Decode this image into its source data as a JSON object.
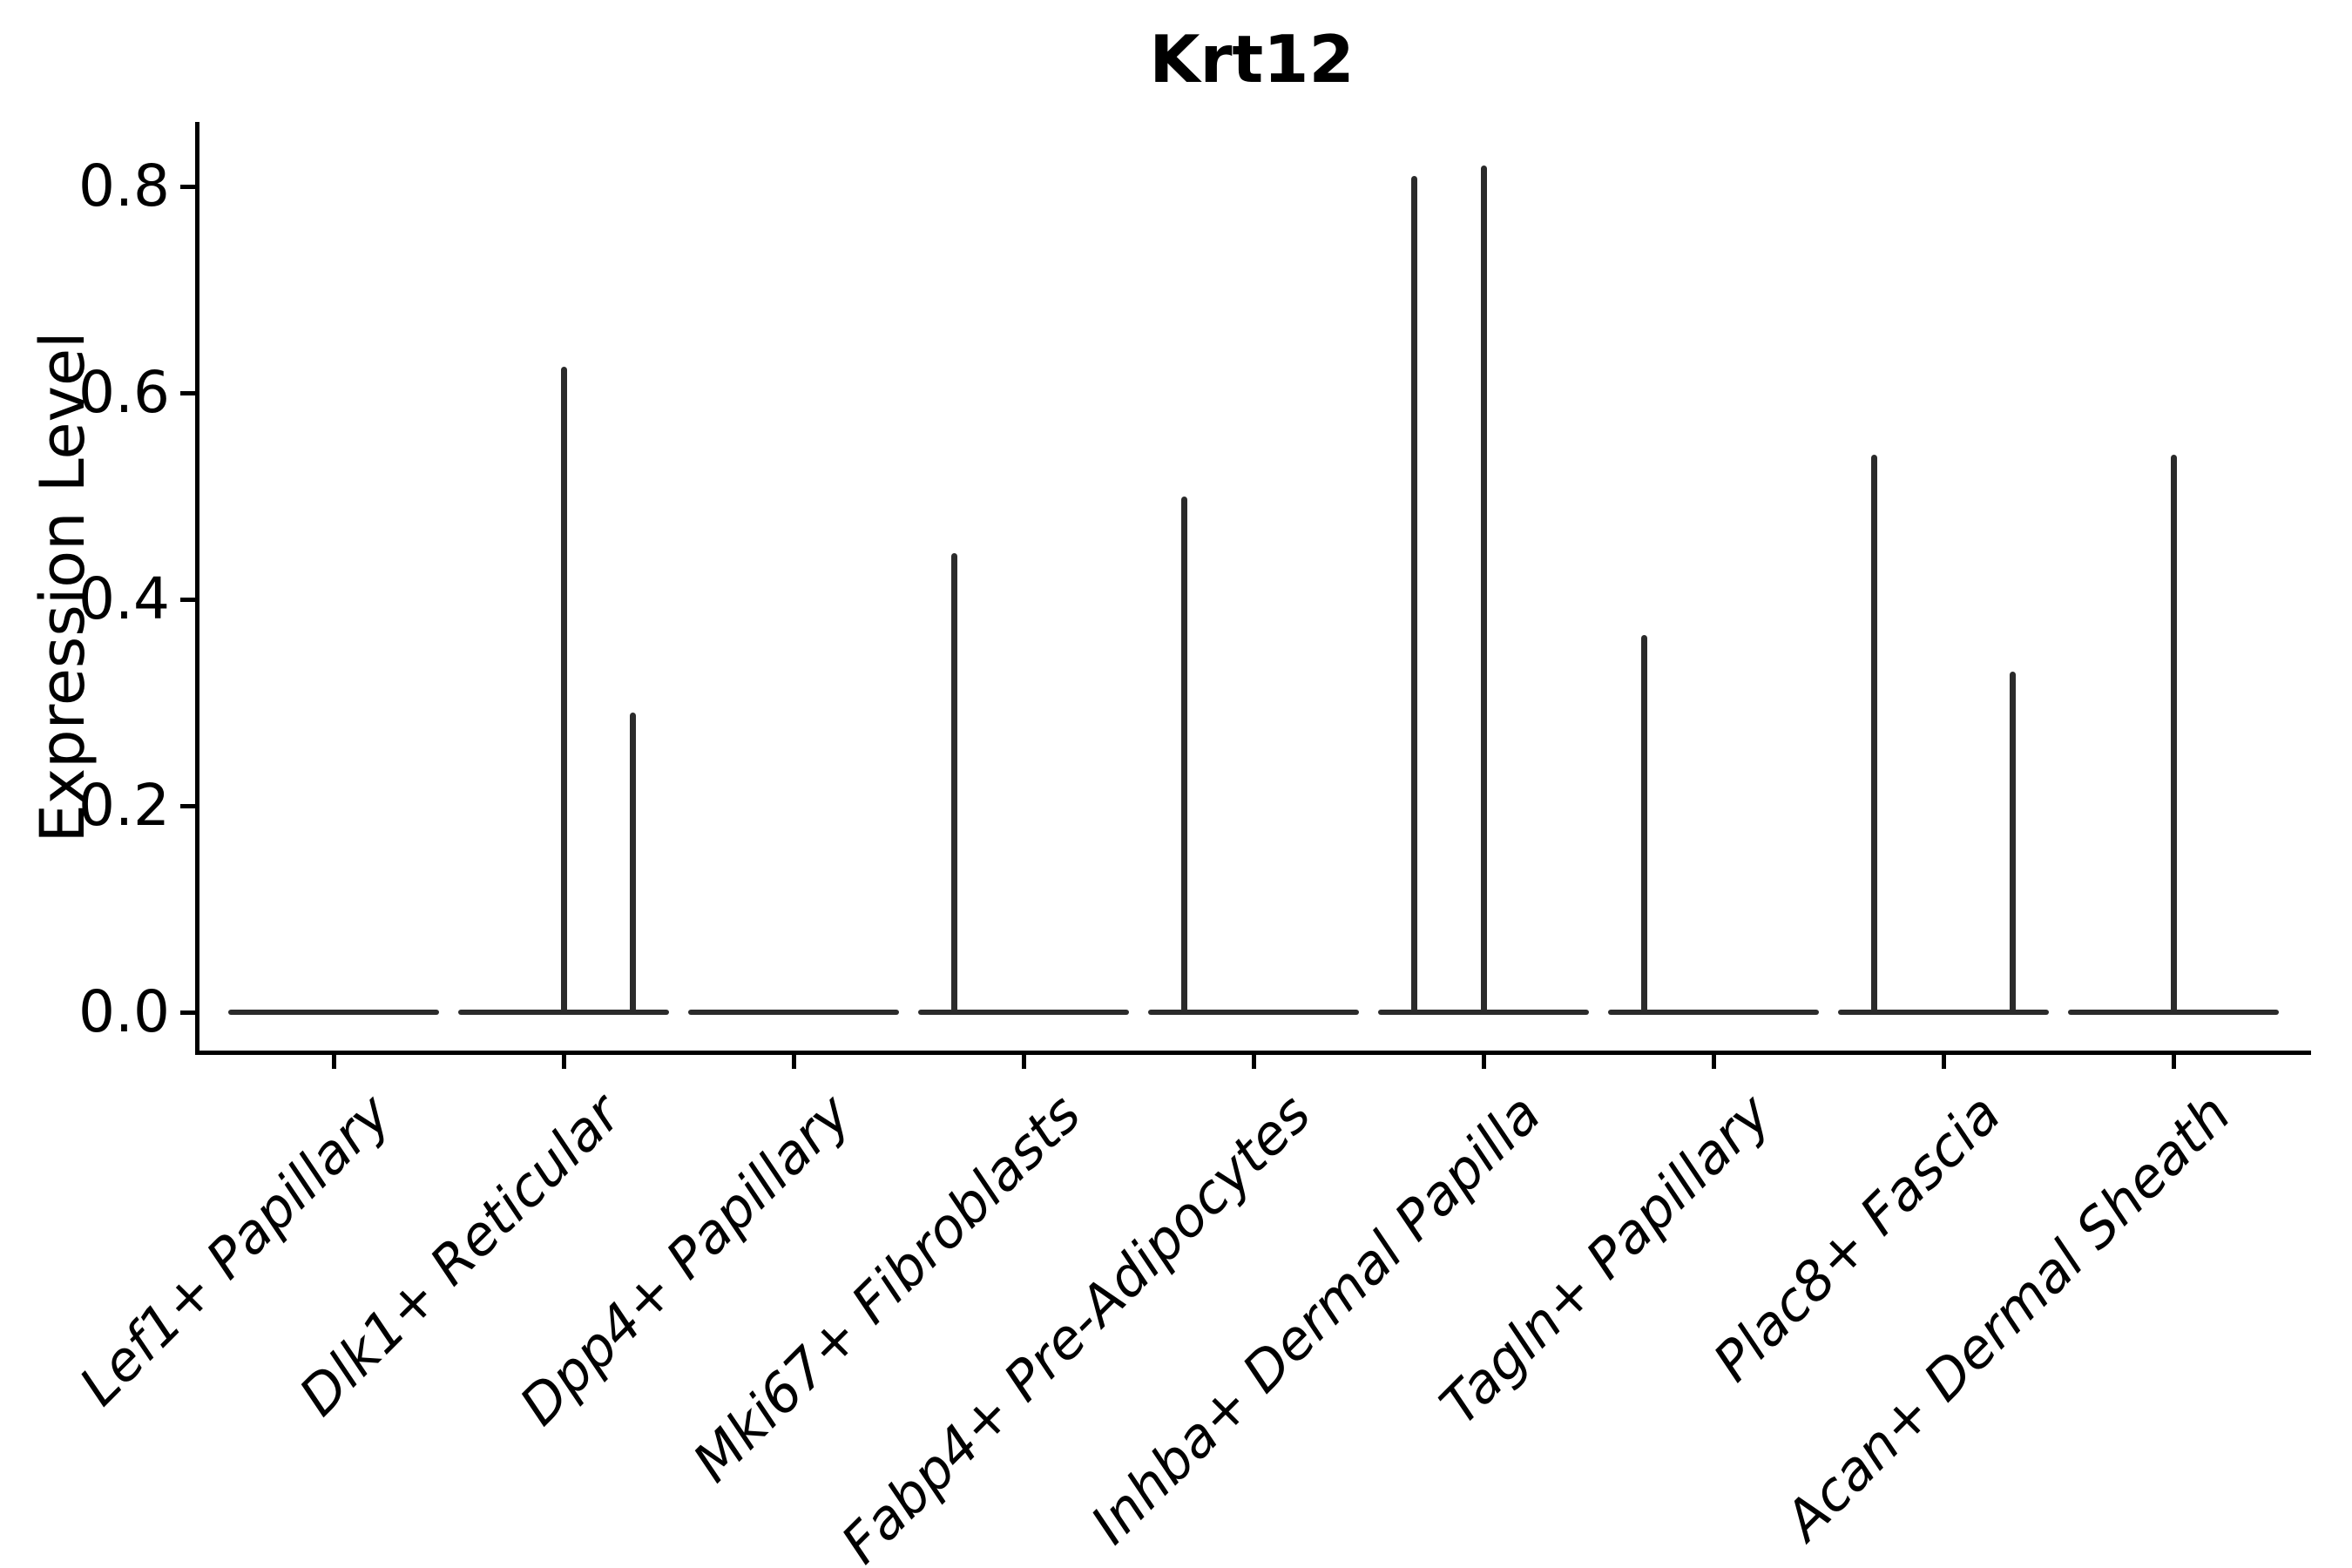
{
  "chart_data": {
    "type": "violin",
    "title": "Krt12",
    "ylabel": "Expression Level",
    "xlabel": "",
    "ylim": [
      -0.04,
      0.86
    ],
    "grid": false,
    "legend": "none",
    "yticks": [
      {
        "label": "0.0",
        "value": 0.0
      },
      {
        "label": "0.2",
        "value": 0.2
      },
      {
        "label": "0.4",
        "value": 0.4
      },
      {
        "label": "0.6",
        "value": 0.6
      },
      {
        "label": "0.8",
        "value": 0.8
      }
    ],
    "categories": [
      "Lef1+ Papillary",
      "Dlk1+ Reticular",
      "Dpp4+ Papillary",
      "Mki67+ Fibroblasts",
      "Fabp4+ Pre-Adipocytes",
      "Inhba+ Dermal Papilla",
      "Tagln+ Papillary",
      "Plac8+ Fascia",
      "Acan+ Dermal Sheath"
    ],
    "violins": [
      {
        "category": "Lef1+ Papillary",
        "bulk_value": 0.0,
        "spikes": []
      },
      {
        "category": "Dlk1+ Reticular",
        "bulk_value": 0.0,
        "spikes": [
          {
            "offset": 0.0,
            "max": 0.625
          },
          {
            "offset": 0.3,
            "max": 0.29
          }
        ]
      },
      {
        "category": "Dpp4+ Papillary",
        "bulk_value": 0.0,
        "spikes": []
      },
      {
        "category": "Mki67+ Fibroblasts",
        "bulk_value": 0.0,
        "spikes": [
          {
            "offset": -0.3,
            "max": 0.445
          }
        ]
      },
      {
        "category": "Fabp4+ Pre-Adipocytes",
        "bulk_value": 0.0,
        "spikes": [
          {
            "offset": -0.3,
            "max": 0.5
          }
        ]
      },
      {
        "category": "Inhba+ Dermal Papilla",
        "bulk_value": 0.0,
        "spikes": [
          {
            "offset": -0.3,
            "max": 0.81
          },
          {
            "offset": 0.0,
            "max": 0.82
          }
        ]
      },
      {
        "category": "Tagln+ Papillary",
        "bulk_value": 0.0,
        "spikes": [
          {
            "offset": -0.3,
            "max": 0.365
          }
        ]
      },
      {
        "category": "Plac8+ Fascia",
        "bulk_value": 0.0,
        "spikes": [
          {
            "offset": -0.3,
            "max": 0.54
          },
          {
            "offset": 0.3,
            "max": 0.33
          }
        ]
      },
      {
        "category": "Acan+ Dermal Sheath",
        "bulk_value": 0.0,
        "spikes": [
          {
            "offset": 0.0,
            "max": 0.54
          }
        ]
      }
    ],
    "colors": {
      "stroke": "#2b2b2b",
      "axis": "#000000",
      "background": "#ffffff"
    }
  }
}
